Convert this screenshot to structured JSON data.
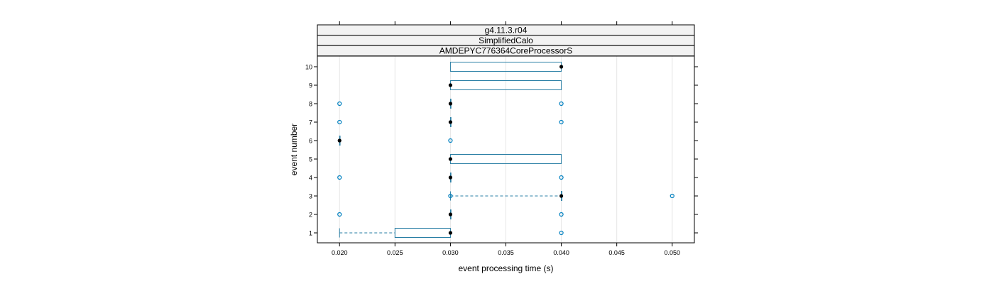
{
  "chart_data": {
    "type": "boxplot",
    "strips": [
      "g4.11.3.r04",
      "SimplifiedCalo",
      "AMDEPYC776364CoreProcessorS"
    ],
    "xlabel": "event processing time (s)",
    "ylabel": "event number",
    "xlim": [
      0.018,
      0.052
    ],
    "x_ticks": [
      "0.020",
      "0.025",
      "0.030",
      "0.035",
      "0.040",
      "0.045",
      "0.050"
    ],
    "y_ticks": [
      "1",
      "2",
      "3",
      "4",
      "5",
      "6",
      "7",
      "8",
      "9",
      "10"
    ],
    "grid": true,
    "colors": {
      "box": "#2a7fa5",
      "outlier": "#0080c0",
      "median": "#000000",
      "grid": "#e6e6e6",
      "strip_bg": "#f2f2f2"
    },
    "boxes": [
      {
        "event": 1,
        "lower_whisker": 0.02,
        "q1": 0.025,
        "median": 0.03,
        "q3": 0.03,
        "upper_whisker": 0.03,
        "outliers": [
          0.04
        ]
      },
      {
        "event": 2,
        "lower_whisker": 0.03,
        "q1": 0.03,
        "median": 0.03,
        "q3": 0.03,
        "upper_whisker": 0.03,
        "outliers": [
          0.02,
          0.04
        ]
      },
      {
        "event": 3,
        "lower_whisker": 0.03,
        "q1": 0.04,
        "median": 0.04,
        "q3": 0.04,
        "upper_whisker": 0.04,
        "outliers": [
          0.03,
          0.05
        ]
      },
      {
        "event": 4,
        "lower_whisker": 0.03,
        "q1": 0.03,
        "median": 0.03,
        "q3": 0.03,
        "upper_whisker": 0.03,
        "outliers": [
          0.02,
          0.04
        ]
      },
      {
        "event": 5,
        "lower_whisker": 0.03,
        "q1": 0.03,
        "median": 0.03,
        "q3": 0.04,
        "upper_whisker": 0.04,
        "outliers": []
      },
      {
        "event": 6,
        "lower_whisker": 0.02,
        "q1": 0.02,
        "median": 0.02,
        "q3": 0.02,
        "upper_whisker": 0.02,
        "outliers": [
          0.03
        ]
      },
      {
        "event": 7,
        "lower_whisker": 0.03,
        "q1": 0.03,
        "median": 0.03,
        "q3": 0.03,
        "upper_whisker": 0.03,
        "outliers": [
          0.02,
          0.04
        ]
      },
      {
        "event": 8,
        "lower_whisker": 0.03,
        "q1": 0.03,
        "median": 0.03,
        "q3": 0.03,
        "upper_whisker": 0.03,
        "outliers": [
          0.02,
          0.04
        ]
      },
      {
        "event": 9,
        "lower_whisker": 0.03,
        "q1": 0.03,
        "median": 0.03,
        "q3": 0.04,
        "upper_whisker": 0.04,
        "outliers": []
      },
      {
        "event": 10,
        "lower_whisker": 0.03,
        "q1": 0.03,
        "median": 0.04,
        "q3": 0.04,
        "upper_whisker": 0.04,
        "outliers": []
      }
    ]
  }
}
